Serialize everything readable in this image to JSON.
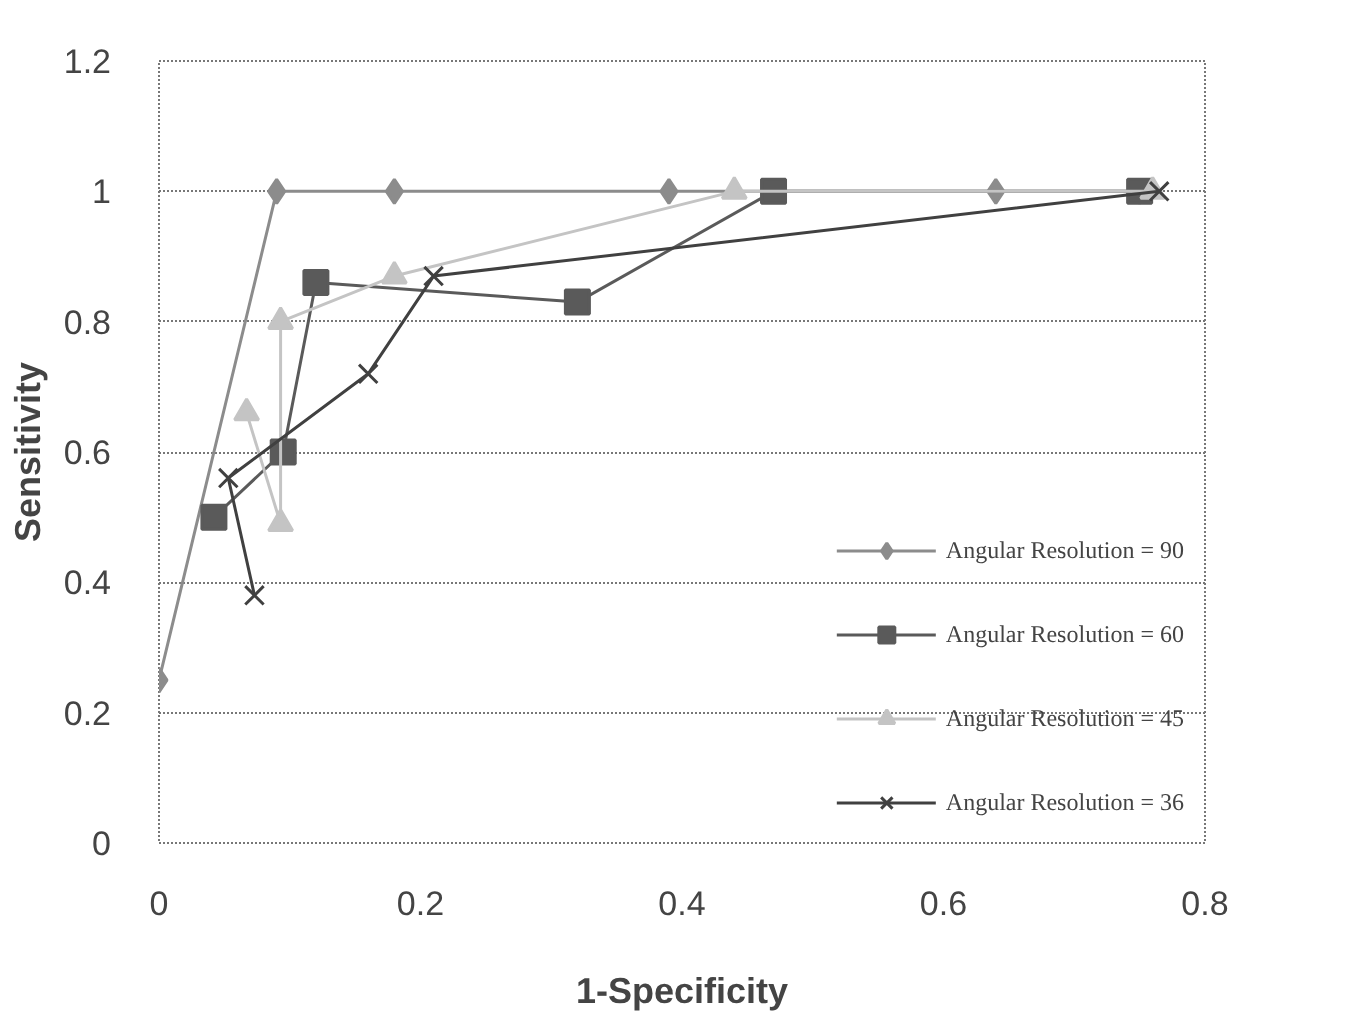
{
  "chart_data": {
    "type": "line",
    "xlabel": "1-Specificity",
    "ylabel": "Sensitivity",
    "xlim": [
      0,
      0.8
    ],
    "xticks": [
      0,
      0.2,
      0.4,
      0.6,
      0.8
    ],
    "ylim": [
      0,
      1.2
    ],
    "yticks": [
      0,
      0.2,
      0.4,
      0.6,
      0.8,
      1,
      1.2
    ],
    "grid": "y",
    "legend": "bottom right",
    "series": [
      {
        "name": "Angular Resolution = 90",
        "color": "#8c8c8c",
        "marker": "diamond",
        "x": [
          0,
          0.09,
          0.18,
          0.39,
          0.64,
          0.75
        ],
        "values": [
          0.25,
          1,
          1,
          1,
          1,
          1
        ]
      },
      {
        "name": "Angular Resolution = 60",
        "color": "#5a5a5a",
        "marker": "square",
        "x": [
          0.042,
          0.095,
          0.12,
          0.32,
          0.47,
          0.75
        ],
        "values": [
          0.5,
          0.6,
          0.86,
          0.83,
          1,
          1
        ]
      },
      {
        "name": "Angular Resolution = 45",
        "color": "#c4c4c4",
        "marker": "triangle",
        "x": [
          0.067,
          0.093,
          0.093,
          0.18,
          0.44,
          0.76
        ],
        "values": [
          0.66,
          0.49,
          0.8,
          0.87,
          1,
          1
        ]
      },
      {
        "name": "Angular Resolution = 36",
        "color": "#404040",
        "marker": "cross",
        "x": [
          0.073,
          0.053,
          0.16,
          0.21,
          0.765
        ],
        "values": [
          0.38,
          0.56,
          0.72,
          0.87,
          1
        ]
      }
    ]
  }
}
